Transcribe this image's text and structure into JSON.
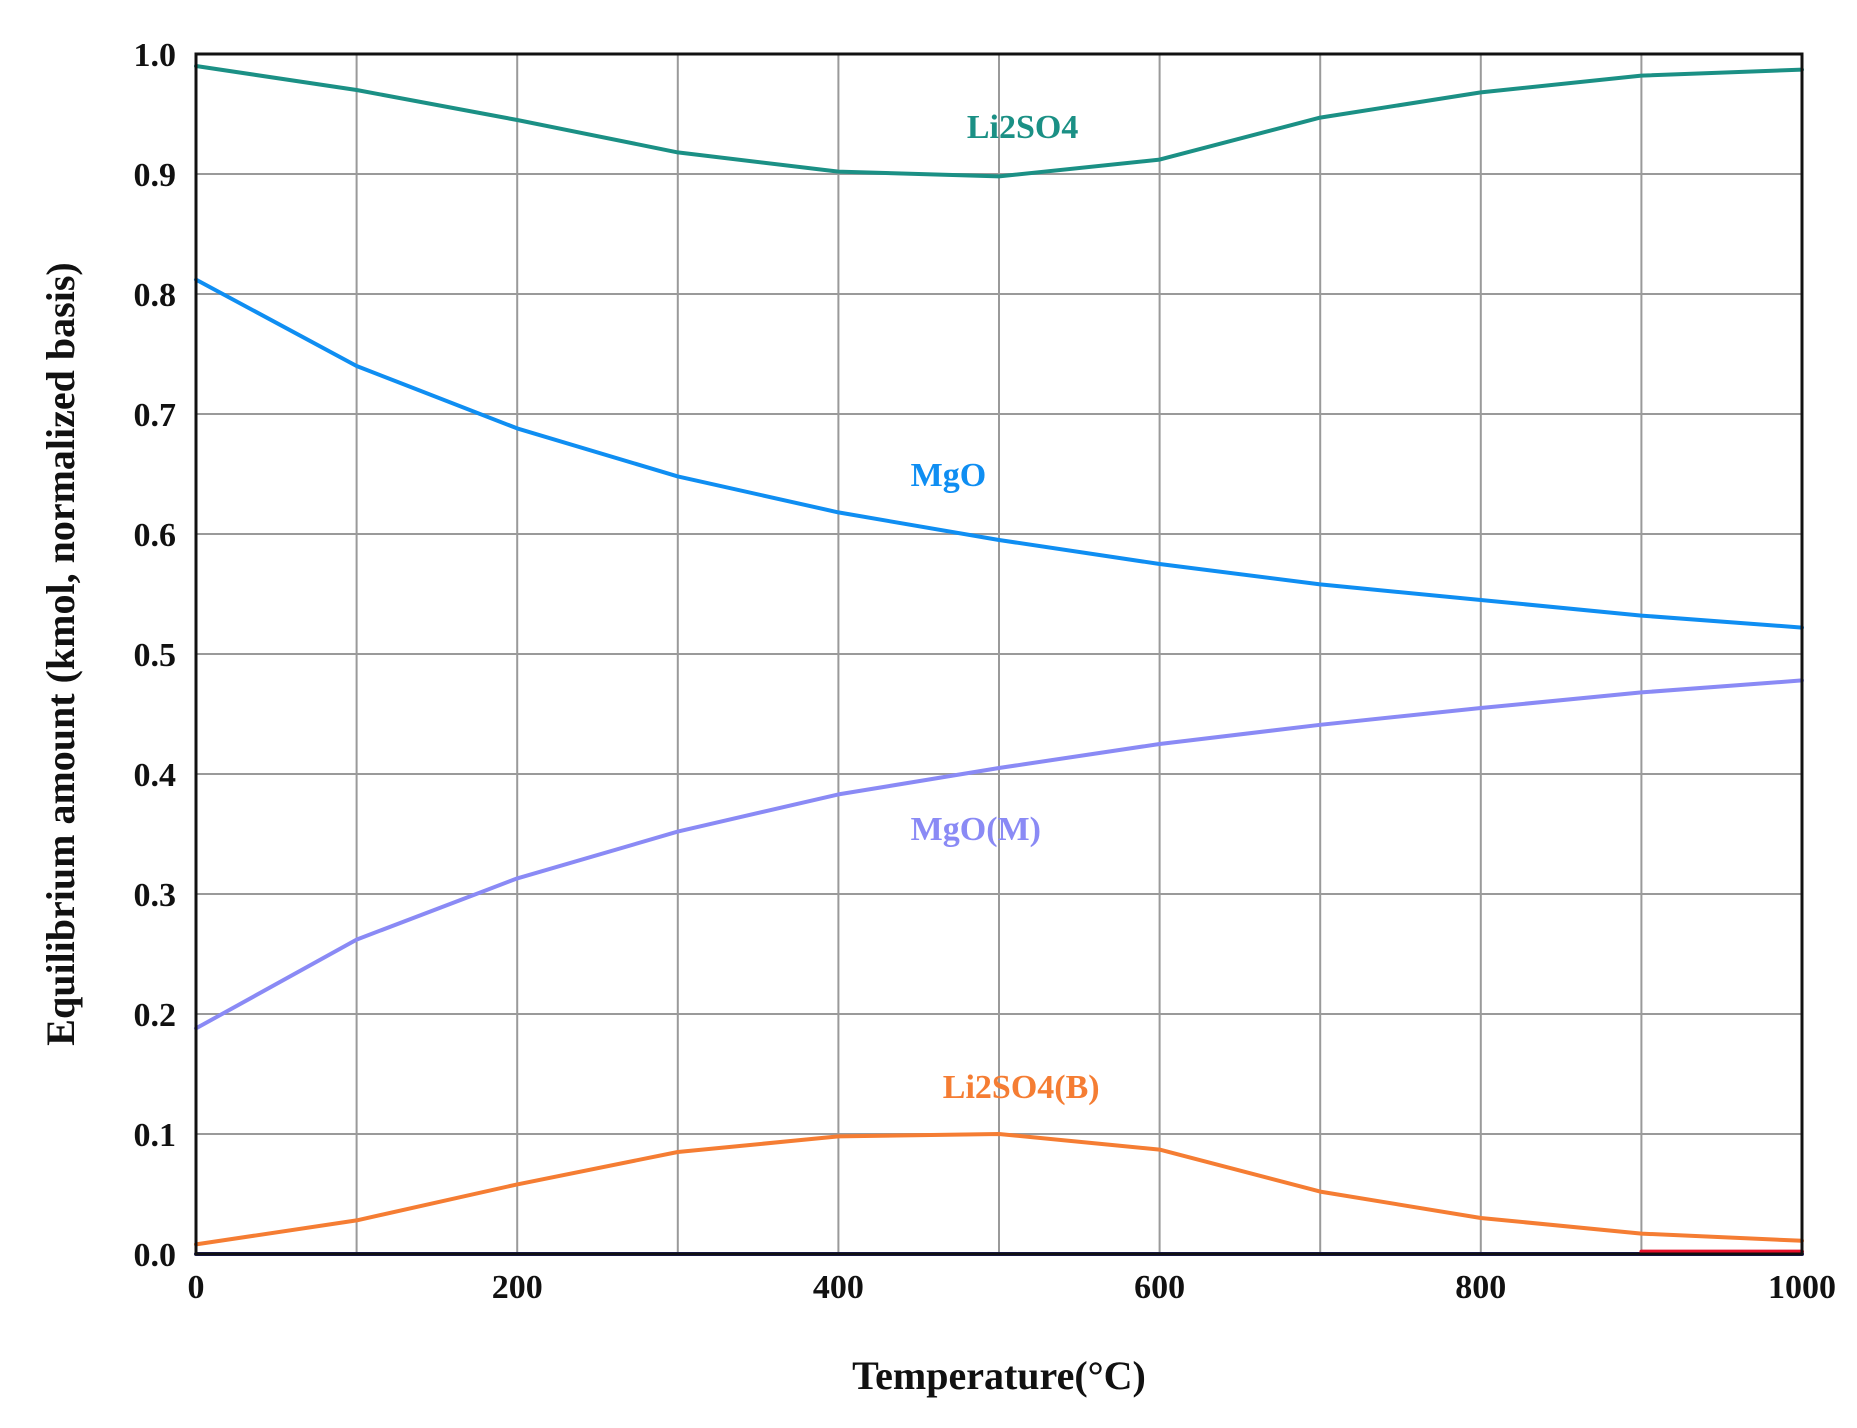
{
  "chart_data": {
    "type": "line",
    "title": "",
    "xlabel": "Temperature(°C)",
    "ylabel": "Equilibrium  amount  (kmol,  normalized  basis)",
    "xlim": [
      0,
      1000
    ],
    "ylim": [
      0,
      1.0
    ],
    "xticks": [
      "0",
      "200",
      "400",
      "600",
      "800",
      "1000"
    ],
    "xtick_values": [
      0,
      200,
      400,
      600,
      800,
      1000
    ],
    "yticks": [
      "0.0",
      "0.1",
      "0.2",
      "0.3",
      "0.4",
      "0.5",
      "0.6",
      "0.7",
      "0.8",
      "0.9",
      "1.0"
    ],
    "ytick_values": [
      0,
      0.1,
      0.2,
      0.3,
      0.4,
      0.5,
      0.6,
      0.7,
      0.8,
      0.9,
      1.0
    ],
    "x_gridlines": [
      0,
      100,
      200,
      300,
      400,
      500,
      600,
      700,
      800,
      900,
      1000
    ],
    "grid": true,
    "series": [
      {
        "name": "Li2SO4",
        "label": "Li2SO4",
        "color": "#1b9085",
        "label_at": [
          480,
          0.93
        ],
        "x": [
          0,
          100,
          200,
          300,
          400,
          500,
          600,
          700,
          800,
          900,
          1000
        ],
        "y": [
          0.99,
          0.97,
          0.945,
          0.918,
          0.902,
          0.898,
          0.912,
          0.947,
          0.968,
          0.982,
          0.987
        ]
      },
      {
        "name": "MgO",
        "label": "MgO",
        "color": "#0f8ef2",
        "label_at": [
          445,
          0.64
        ],
        "x": [
          0,
          100,
          200,
          300,
          400,
          500,
          600,
          700,
          800,
          900,
          1000
        ],
        "y": [
          0.812,
          0.74,
          0.688,
          0.648,
          0.618,
          0.595,
          0.575,
          0.558,
          0.545,
          0.532,
          0.522
        ]
      },
      {
        "name": "MgO(M)",
        "label": "MgO(M)",
        "color": "#8a8af5",
        "label_at": [
          445,
          0.345
        ],
        "x": [
          0,
          100,
          200,
          300,
          400,
          500,
          600,
          700,
          800,
          900,
          1000
        ],
        "y": [
          0.188,
          0.262,
          0.313,
          0.352,
          0.383,
          0.405,
          0.425,
          0.441,
          0.455,
          0.468,
          0.478
        ]
      },
      {
        "name": "Li2SO4(B)",
        "label": "Li2SO4(B)",
        "color": "#f57d33",
        "label_at": [
          465,
          0.13
        ],
        "x": [
          0,
          100,
          200,
          300,
          400,
          500,
          600,
          700,
          800,
          900,
          1000
        ],
        "y": [
          0.008,
          0.028,
          0.058,
          0.085,
          0.098,
          0.1,
          0.087,
          0.052,
          0.03,
          0.017,
          0.011
        ]
      },
      {
        "name": "baseline",
        "label": "",
        "color": "#1a1a6e",
        "x": [
          0,
          1000
        ],
        "y": [
          0,
          0
        ]
      },
      {
        "name": "baseline-red",
        "label": "",
        "color": "#e8102a",
        "x": [
          900,
          1000
        ],
        "y": [
          0.002,
          0.002
        ]
      }
    ]
  }
}
